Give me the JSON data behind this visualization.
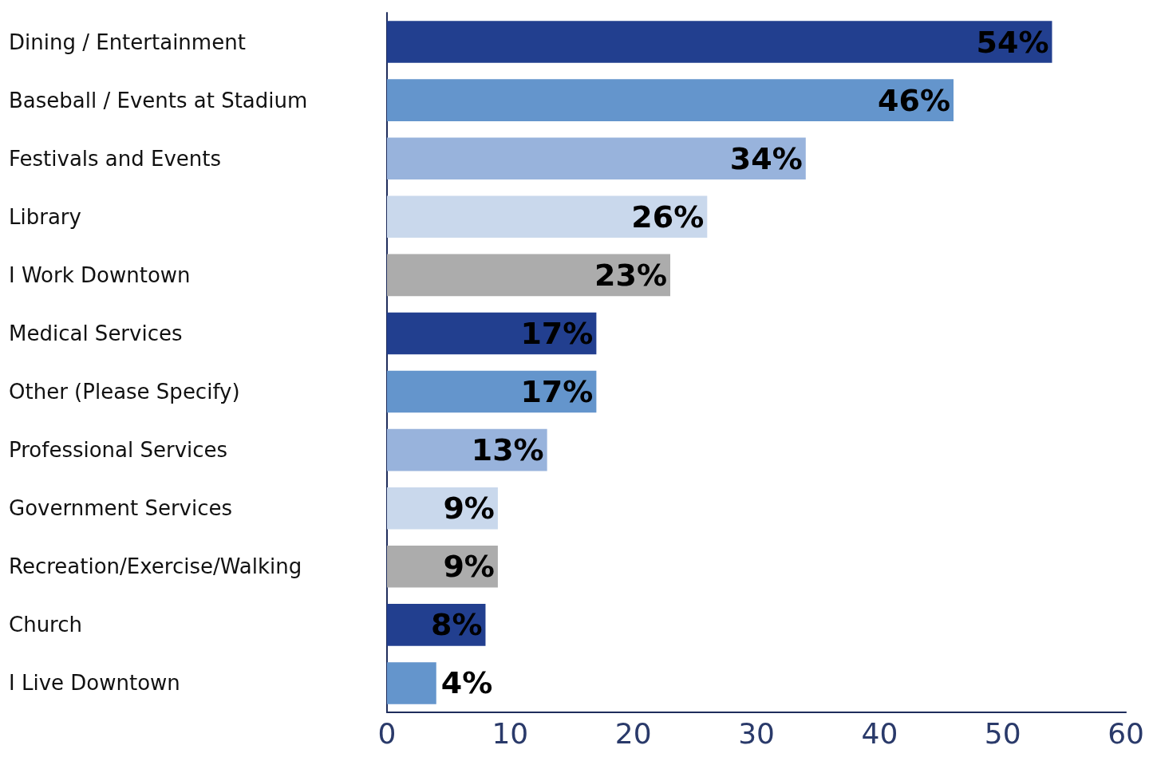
{
  "chart_data": {
    "type": "bar",
    "orientation": "horizontal",
    "categories": [
      "Dining / Entertainment",
      "Baseball / Events at Stadium",
      "Festivals and Events",
      "Library",
      "I Work Downtown",
      "Medical Services",
      "Other (Please Specify)",
      "Professional Services",
      "Government Services",
      "Recreation/Exercise/Walking",
      "Church",
      "I Live Downtown"
    ],
    "values": [
      54,
      46,
      34,
      26,
      23,
      17,
      17,
      13,
      9,
      9,
      8,
      4
    ],
    "value_labels": [
      "54%",
      "46%",
      "34%",
      "26%",
      "23%",
      "17%",
      "17%",
      "13%",
      "9%",
      "9%",
      "8%",
      "4%"
    ],
    "colors": [
      "#223f8f",
      "#6495cc",
      "#98b3dc",
      "#c9d8ec",
      "#acacac",
      "#223f8f",
      "#6495cc",
      "#98b3dc",
      "#c9d8ec",
      "#acacac",
      "#223f8f",
      "#6495cc"
    ],
    "xlim": [
      0,
      60
    ],
    "xticks": [
      0,
      10,
      20,
      30,
      40,
      50,
      60
    ],
    "grid": false
  }
}
